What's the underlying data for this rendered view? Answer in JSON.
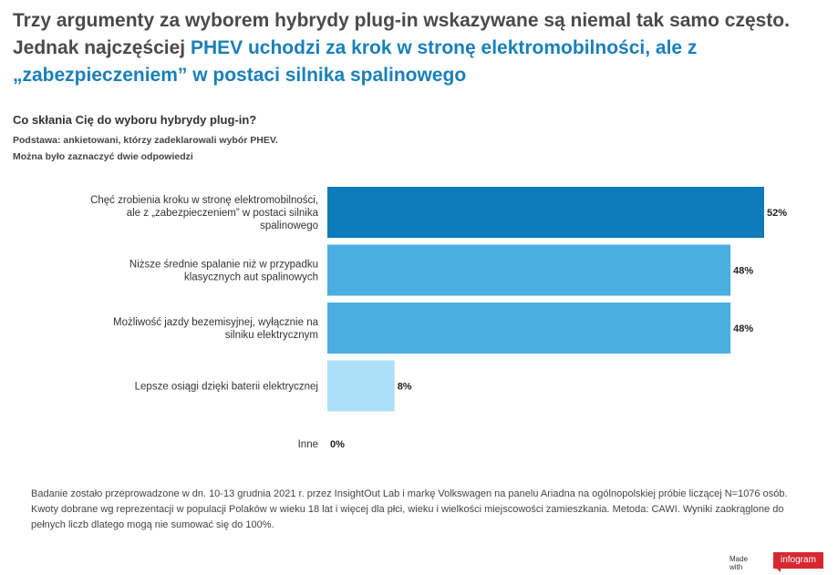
{
  "title": {
    "line1": "Trzy argumenty za wyborem hybrydy plug-in wskazywane są niemal tak samo często.",
    "line2_plain": "Jednak najczęściej ",
    "line2_highlight": "PHEV uchodzi za krok w stronę elektromobilności, ale z",
    "line3_highlight": "„zabezpieczeniem” w postaci silnika spalinowego"
  },
  "question": "Co skłania Cię do wyboru hybrydy plug-in?",
  "subtitle1": "Podstawa: ankietowani, którzy zadeklarowali wybór PHEV.",
  "subtitle2": "Można było zaznaczyć dwie odpowiedzi",
  "chart_data": {
    "type": "bar",
    "orientation": "horizontal",
    "categories": [
      [
        "Chęć zrobienia kroku w stronę elektromobilności,",
        "ale z „zabezpieczeniem” w postaci silnika",
        "spalinowego"
      ],
      [
        "Niższe średnie spalanie niż w przypadku",
        "klasycznych aut spalinowych"
      ],
      [
        "Możliwość jazdy bezemisyjnej, wyłącznie na",
        "silniku elektrycznym"
      ],
      [
        "Lepsze osiągi dzięki baterii elektrycznej"
      ],
      [
        "Inne"
      ]
    ],
    "values": [
      52,
      48,
      48,
      8,
      0
    ],
    "value_labels": [
      "52%",
      "48%",
      "48%",
      "8%",
      "0%"
    ],
    "colors": [
      "#0e7bba",
      "#4aaee2",
      "#4aaee2",
      "#aedff8",
      "#aedff8"
    ],
    "xlim": [
      0,
      52
    ],
    "grid": false
  },
  "footer": "Badanie zostało przeprowadzone w dn. 10-13 grudnia 2021 r. przez InsightOut Lab i markę Volkswagen na panelu Ariadna na ogólnopolskiej próbie liczącej N=1076 osób. Kwoty dobrane wg reprezentacji w populacji Polaków w wieku 18 lat i więcej dla płci, wieku i wielkości miejscowości zamieszkania. Metoda: CAWI. Wyniki zaokrąglone do pełnych liczb dlatego mogą nie sumować się do 100%.",
  "branding": {
    "made_with": "Made with",
    "logo": "infogram"
  }
}
